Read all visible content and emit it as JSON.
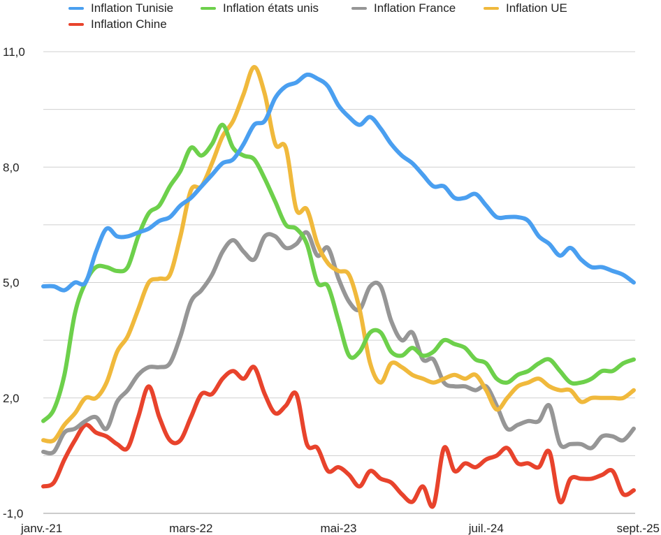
{
  "chart_data": {
    "type": "line",
    "title": "",
    "xlabel": "",
    "ylabel": "",
    "ylim": [
      -1.0,
      11.0
    ],
    "y_ticks": [
      -1.0,
      2.0,
      5.0,
      8.0,
      11.0
    ],
    "y_tick_labels": [
      "-1,0",
      "2,0",
      "5,0",
      "8,0",
      "11,0"
    ],
    "x_tick_labels": [
      "janv.-21",
      "mars-22",
      "mai-23",
      "juil.-24",
      "sept.-25"
    ],
    "x_tick_indices": [
      0,
      14,
      28,
      42,
      56
    ],
    "grid": true,
    "legend_position": "top",
    "series": [
      {
        "name": "Inflation Tunisie",
        "color": "#4a9ff0",
        "values": [
          4.9,
          4.9,
          4.8,
          5.0,
          5.0,
          5.8,
          6.4,
          6.2,
          6.2,
          6.3,
          6.4,
          6.6,
          6.7,
          7.0,
          7.2,
          7.5,
          7.8,
          8.1,
          8.2,
          8.6,
          9.1,
          9.2,
          9.8,
          10.1,
          10.2,
          10.4,
          10.3,
          10.1,
          9.6,
          9.3,
          9.1,
          9.3,
          9.0,
          8.6,
          8.3,
          8.1,
          7.8,
          7.5,
          7.5,
          7.2,
          7.2,
          7.3,
          7.0,
          6.7,
          6.7,
          6.7,
          6.6,
          6.2,
          6.0,
          5.7,
          5.9,
          5.6,
          5.4,
          5.4,
          5.3,
          5.2,
          5.0
        ]
      },
      {
        "name": "Inflation états unis",
        "color": "#6dd04b",
        "values": [
          1.4,
          1.7,
          2.6,
          4.2,
          5.0,
          5.4,
          5.4,
          5.3,
          5.4,
          6.2,
          6.8,
          7.0,
          7.5,
          7.9,
          8.5,
          8.3,
          8.6,
          9.1,
          8.5,
          8.3,
          8.2,
          7.7,
          7.1,
          6.5,
          6.4,
          6.0,
          5.0,
          4.9,
          4.0,
          3.1,
          3.2,
          3.7,
          3.7,
          3.2,
          3.1,
          3.3,
          3.1,
          3.2,
          3.5,
          3.4,
          3.3,
          3.0,
          2.9,
          2.5,
          2.4,
          2.6,
          2.7,
          2.9,
          3.0,
          2.7,
          2.4,
          2.4,
          2.5,
          2.7,
          2.7,
          2.9,
          3.0
        ]
      },
      {
        "name": "Inflation France",
        "color": "#969696",
        "values": [
          0.6,
          0.6,
          1.1,
          1.2,
          1.4,
          1.5,
          1.2,
          1.9,
          2.2,
          2.6,
          2.8,
          2.8,
          2.9,
          3.6,
          4.5,
          4.8,
          5.2,
          5.8,
          6.1,
          5.8,
          5.6,
          6.2,
          6.2,
          5.9,
          6.0,
          6.3,
          5.7,
          5.9,
          5.1,
          4.5,
          4.3,
          4.9,
          4.9,
          4.0,
          3.5,
          3.7,
          3.0,
          3.0,
          2.4,
          2.3,
          2.3,
          2.2,
          2.3,
          1.8,
          1.2,
          1.3,
          1.4,
          1.4,
          1.8,
          0.8,
          0.8,
          0.8,
          0.7,
          1.0,
          1.0,
          0.9,
          1.2
        ]
      },
      {
        "name": "Inflation UE",
        "color": "#f0b93c",
        "values": [
          0.9,
          0.9,
          1.3,
          1.6,
          2.0,
          2.0,
          2.4,
          3.2,
          3.6,
          4.3,
          5.0,
          5.1,
          5.2,
          6.2,
          7.4,
          7.5,
          8.1,
          8.8,
          9.2,
          9.9,
          10.6,
          9.9,
          8.6,
          8.5,
          6.9,
          6.9,
          6.0,
          5.5,
          5.3,
          5.2,
          4.3,
          2.9,
          2.4,
          2.9,
          2.8,
          2.6,
          2.5,
          2.4,
          2.5,
          2.6,
          2.5,
          2.6,
          2.2,
          1.7,
          2.0,
          2.3,
          2.4,
          2.5,
          2.3,
          2.2,
          2.2,
          1.9,
          2.0,
          2.0,
          2.0,
          2.0,
          2.2
        ]
      },
      {
        "name": "Inflation Chine",
        "color": "#e8432c",
        "values": [
          -0.3,
          -0.2,
          0.4,
          0.9,
          1.3,
          1.1,
          1.0,
          0.8,
          0.7,
          1.5,
          2.3,
          1.5,
          0.9,
          0.9,
          1.5,
          2.1,
          2.1,
          2.5,
          2.7,
          2.5,
          2.8,
          2.1,
          1.6,
          1.8,
          2.1,
          0.8,
          0.7,
          0.1,
          0.2,
          0.0,
          -0.3,
          0.1,
          -0.1,
          -0.2,
          -0.5,
          -0.7,
          -0.3,
          -0.8,
          0.7,
          0.1,
          0.3,
          0.2,
          0.4,
          0.5,
          0.7,
          0.3,
          0.3,
          0.2,
          0.6,
          -0.7,
          -0.1,
          -0.1,
          -0.1,
          0.0,
          0.1,
          -0.5,
          -0.4
        ]
      }
    ]
  }
}
